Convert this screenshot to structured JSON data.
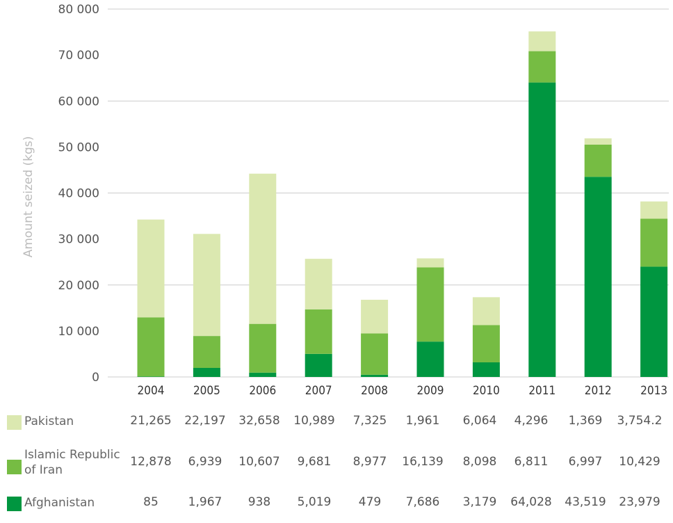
{
  "chart_data": {
    "type": "bar",
    "stacked": true,
    "title": "",
    "xlabel": "",
    "ylabel": "Amount seized (kgs)",
    "ylim": [
      0,
      80000
    ],
    "yticks": [
      0,
      10000,
      20000,
      30000,
      40000,
      50000,
      60000,
      70000,
      80000
    ],
    "ytick_labels": [
      "0",
      "10 000",
      "20 000",
      "30  000",
      "40 000",
      "50 000",
      "60 000",
      "70 000",
      "80 000"
    ],
    "gridlines_at": [
      0,
      20000,
      40000,
      60000,
      80000
    ],
    "grid": true,
    "legend_placement": "bottom-left (data table)",
    "categories": [
      "2004",
      "2005",
      "2006",
      "2007",
      "2008",
      "2009",
      "2010",
      "2011",
      "2012",
      "2013"
    ],
    "series": [
      {
        "name": "Afghanistan",
        "color": "#009640",
        "values": [
          85,
          1967,
          938,
          5019,
          479,
          7686,
          3179,
          64028,
          43519,
          23979
        ],
        "labels": [
          "85",
          "1,967",
          "938",
          "5,019",
          "479",
          "7,686",
          "3,179",
          "64,028",
          "43,519",
          "23,979"
        ]
      },
      {
        "name": "Islamic Republic of Iran",
        "name_lines": [
          "Islamic Republic",
          "of Iran"
        ],
        "color": "#76bc43",
        "values": [
          12878,
          6939,
          10607,
          9681,
          8977,
          16139,
          8098,
          6811,
          6997,
          10429
        ],
        "labels": [
          "12,878",
          "6,939",
          "10,607",
          "9,681",
          "8,977",
          "16,139",
          "8,098",
          "6,811",
          "6,997",
          "10,429"
        ]
      },
      {
        "name": "Pakistan",
        "color": "#dbe8b0",
        "values": [
          21265,
          22197,
          32658,
          10989,
          7325,
          1961,
          6064,
          4296,
          1369,
          3754.2
        ],
        "labels": [
          "21,265",
          "22,197",
          "32,658",
          "10,989",
          "7,325",
          "1,961",
          "6,064",
          "4,296",
          "1,369",
          "3,754.2"
        ]
      }
    ],
    "table_row_order": [
      "Pakistan",
      "Islamic Republic of Iran",
      "Afghanistan"
    ]
  },
  "colors": {
    "grid": "#cccccc",
    "axis_text": "#555555",
    "ylabel": "#bbbbbb"
  }
}
